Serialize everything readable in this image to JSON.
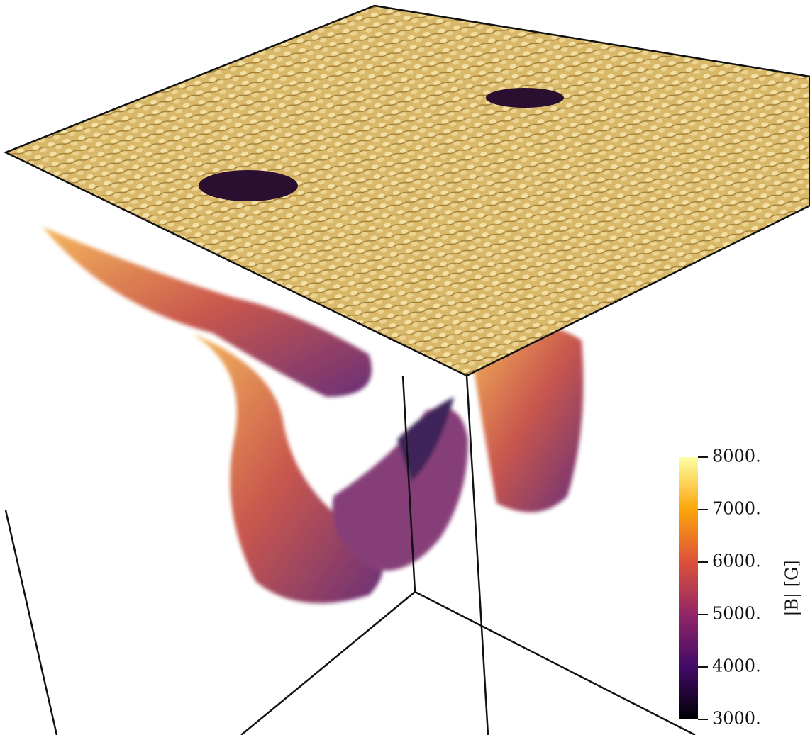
{
  "colorbar": {
    "label": "|B| [G]",
    "lim": [
      3000,
      8000
    ],
    "ticks": [
      {
        "value": 3000,
        "label": "3000."
      },
      {
        "value": 4000,
        "label": "4000."
      },
      {
        "value": 5000,
        "label": "5000."
      },
      {
        "value": 6000,
        "label": "6000."
      },
      {
        "value": 7000,
        "label": "7000."
      },
      {
        "value": 8000,
        "label": "8000."
      }
    ]
  }
}
